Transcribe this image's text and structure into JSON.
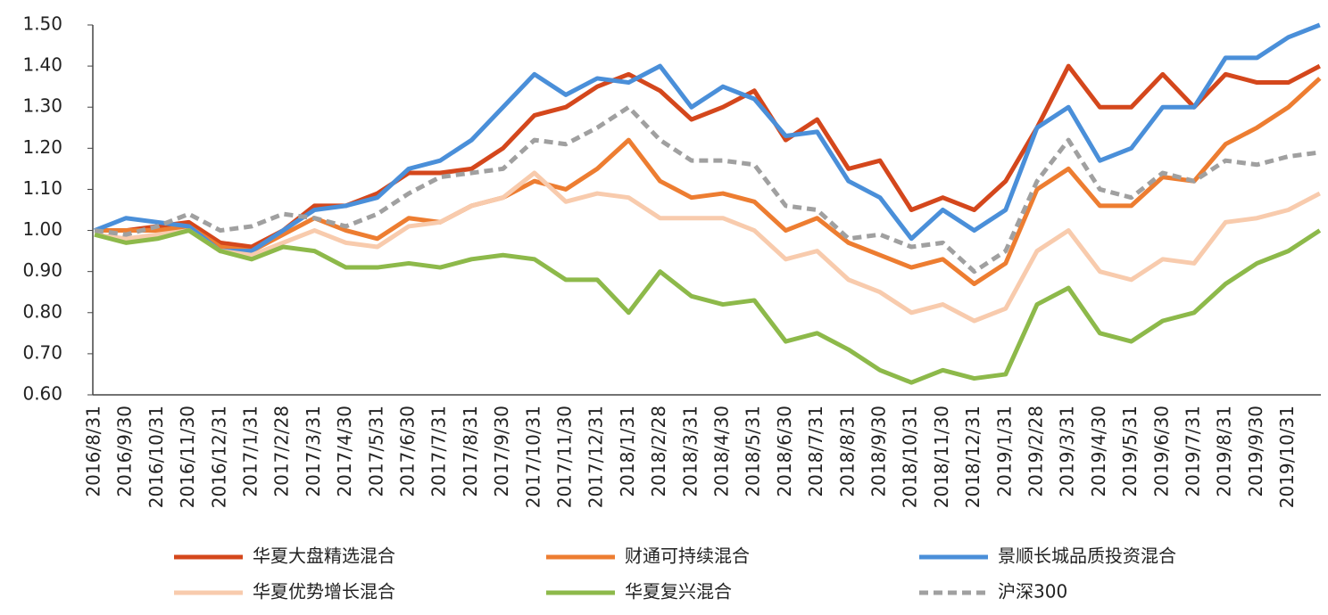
{
  "chart_data": {
    "type": "line",
    "categories": [
      "2016/8/31",
      "2016/9/30",
      "2016/10/31",
      "2016/11/30",
      "2016/12/31",
      "2017/1/31",
      "2017/2/28",
      "2017/3/31",
      "2017/4/30",
      "2017/5/31",
      "2017/6/30",
      "2017/7/31",
      "2017/8/31",
      "2017/9/30",
      "2017/10/31",
      "2017/11/30",
      "2017/12/31",
      "2018/1/31",
      "2018/2/28",
      "2018/3/31",
      "2018/4/30",
      "2018/5/31",
      "2018/6/30",
      "2018/7/31",
      "2018/8/31",
      "2018/9/30",
      "2018/10/31",
      "2018/11/30",
      "2018/12/31",
      "2019/1/31",
      "2019/2/28",
      "2019/3/31",
      "2019/4/30",
      "2019/5/31",
      "2019/6/30",
      "2019/7/31",
      "2019/8/31",
      "2019/9/30",
      "2019/10/31",
      null
    ],
    "series": [
      {
        "name": "华夏大盘精选混合",
        "color": "#d4471c",
        "values": [
          1.0,
          1.0,
          1.01,
          1.02,
          0.97,
          0.96,
          1.0,
          1.06,
          1.06,
          1.09,
          1.14,
          1.14,
          1.15,
          1.2,
          1.28,
          1.3,
          1.35,
          1.38,
          1.34,
          1.27,
          1.3,
          1.34,
          1.22,
          1.27,
          1.15,
          1.17,
          1.05,
          1.08,
          1.05,
          1.12,
          1.25,
          1.4,
          1.3,
          1.3,
          1.38,
          1.3,
          1.38,
          1.36,
          1.36,
          1.4
        ]
      },
      {
        "name": "财通可持续混合",
        "color": "#ed7d31",
        "values": [
          1.0,
          1.0,
          1.0,
          1.01,
          0.96,
          0.95,
          0.99,
          1.03,
          1.0,
          0.98,
          1.03,
          1.02,
          1.06,
          1.08,
          1.12,
          1.1,
          1.15,
          1.22,
          1.12,
          1.08,
          1.09,
          1.07,
          1.0,
          1.03,
          0.97,
          0.94,
          0.91,
          0.93,
          0.87,
          0.92,
          1.1,
          1.15,
          1.06,
          1.06,
          1.13,
          1.12,
          1.21,
          1.25,
          1.3,
          1.37
        ]
      },
      {
        "name": "景顺长城品质投资混合",
        "color": "#4a8fd9",
        "values": [
          1.0,
          1.03,
          1.02,
          1.01,
          0.95,
          0.95,
          1.0,
          1.05,
          1.06,
          1.08,
          1.15,
          1.17,
          1.22,
          1.3,
          1.38,
          1.33,
          1.37,
          1.36,
          1.4,
          1.3,
          1.35,
          1.32,
          1.23,
          1.24,
          1.12,
          1.08,
          0.98,
          1.05,
          1.0,
          1.05,
          1.25,
          1.3,
          1.17,
          1.2,
          1.3,
          1.3,
          1.42,
          1.42,
          1.47,
          1.5
        ]
      },
      {
        "name": "华夏优势增长混合",
        "color": "#f8cbad",
        "values": [
          0.99,
          0.98,
          0.99,
          1.0,
          0.95,
          0.94,
          0.97,
          1.0,
          0.97,
          0.96,
          1.01,
          1.02,
          1.06,
          1.08,
          1.14,
          1.07,
          1.09,
          1.08,
          1.03,
          1.03,
          1.03,
          1.0,
          0.93,
          0.95,
          0.88,
          0.85,
          0.8,
          0.82,
          0.78,
          0.81,
          0.95,
          1.0,
          0.9,
          0.88,
          0.93,
          0.92,
          1.02,
          1.03,
          1.05,
          1.09
        ]
      },
      {
        "name": "华夏复兴混合",
        "color": "#8db94a",
        "values": [
          0.99,
          0.97,
          0.98,
          1.0,
          0.95,
          0.93,
          0.96,
          0.95,
          0.91,
          0.91,
          0.92,
          0.91,
          0.93,
          0.94,
          0.93,
          0.88,
          0.88,
          0.8,
          0.9,
          0.84,
          0.82,
          0.83,
          0.73,
          0.75,
          0.71,
          0.66,
          0.63,
          0.66,
          0.64,
          0.65,
          0.82,
          0.86,
          0.75,
          0.73,
          0.78,
          0.8,
          0.87,
          0.92,
          0.95,
          1.0
        ]
      },
      {
        "name": "沪深300",
        "color": "#a0a0a0",
        "dashed": true,
        "values": [
          1.0,
          0.99,
          1.01,
          1.04,
          1.0,
          1.01,
          1.04,
          1.03,
          1.01,
          1.04,
          1.09,
          1.13,
          1.14,
          1.15,
          1.22,
          1.21,
          1.25,
          1.3,
          1.22,
          1.17,
          1.17,
          1.16,
          1.06,
          1.05,
          0.98,
          0.99,
          0.96,
          0.97,
          0.9,
          0.95,
          1.12,
          1.22,
          1.1,
          1.08,
          1.14,
          1.12,
          1.17,
          1.16,
          1.18,
          1.19
        ]
      }
    ],
    "ylim": [
      0.6,
      1.5
    ],
    "yticks": [
      {
        "value": 0.6,
        "label": "0.60"
      },
      {
        "value": 0.7,
        "label": "0.70"
      },
      {
        "value": 0.8,
        "label": "0.80"
      },
      {
        "value": 0.9,
        "label": "0.90"
      },
      {
        "value": 1.0,
        "label": "1.00"
      },
      {
        "value": 1.1,
        "label": "1.10"
      },
      {
        "value": 1.2,
        "label": "1.20"
      },
      {
        "value": 1.3,
        "label": "1.30"
      },
      {
        "value": 1.4,
        "label": "1.40"
      },
      {
        "value": 1.5,
        "label": "1.50"
      }
    ],
    "grid": false
  }
}
